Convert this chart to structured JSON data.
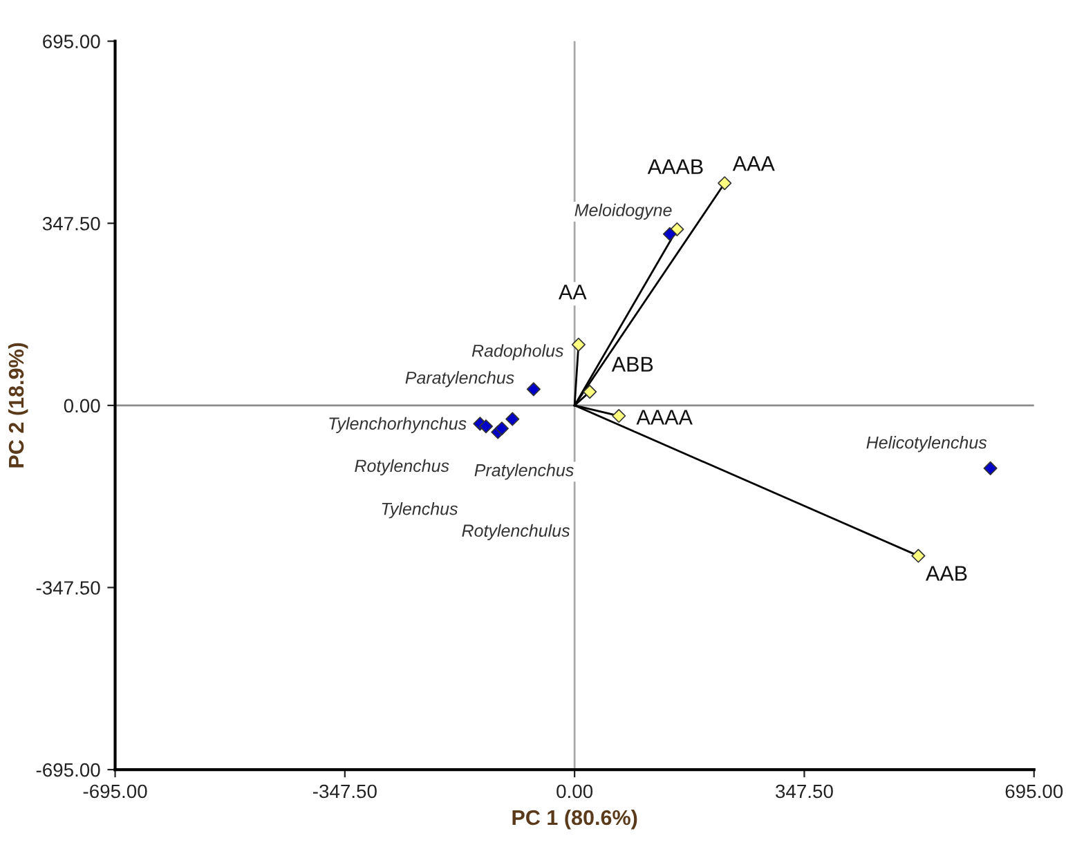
{
  "chart_data": {
    "type": "scatter",
    "xlabel": "PC 1 (80.6%)",
    "ylabel": "PC 2 (18.9%)",
    "xlim": [
      -695,
      695
    ],
    "ylim": [
      -695,
      695
    ],
    "xticks": [
      {
        "value": -695,
        "label": "-695.00"
      },
      {
        "value": -347.5,
        "label": "-347.50"
      },
      {
        "value": 0,
        "label": "0.00"
      },
      {
        "value": 347.5,
        "label": "347.50"
      },
      {
        "value": 695,
        "label": "695.00"
      }
    ],
    "yticks": [
      {
        "value": -695,
        "label": "-695.00"
      },
      {
        "value": -347.5,
        "label": "-347.50"
      },
      {
        "value": 0,
        "label": "0.00"
      },
      {
        "value": 347.5,
        "label": "347.50"
      },
      {
        "value": 695,
        "label": "695.00"
      }
    ],
    "grid": false,
    "marker": "diamond",
    "ref_lines": [
      {
        "axis": "x",
        "value": 0,
        "color": "#a8a8a8"
      },
      {
        "axis": "y",
        "value": 0,
        "color": "#8c8c8c"
      }
    ],
    "series": [
      {
        "type": "line",
        "marker": "none",
        "color": "#000000",
        "x": [
          0,
          155
        ],
        "values": [
          0,
          336
        ]
      },
      {
        "type": "line",
        "marker": "none",
        "color": "#000000",
        "x": [
          0,
          227
        ],
        "values": [
          0,
          424
        ]
      },
      {
        "type": "line",
        "marker": "none",
        "color": "#000000",
        "x": [
          0,
          6
        ],
        "values": [
          0,
          116
        ]
      },
      {
        "type": "line",
        "marker": "none",
        "color": "#000000",
        "x": [
          0,
          23
        ],
        "values": [
          0,
          26
        ]
      },
      {
        "type": "line",
        "marker": "none",
        "color": "#000000",
        "x": [
          0,
          67
        ],
        "values": [
          0,
          -20
        ]
      },
      {
        "type": "line",
        "marker": "none",
        "color": "#000000",
        "x": [
          0,
          520
        ],
        "values": [
          0,
          -287
        ]
      },
      {
        "color": "#ffff80",
        "x": [
          155,
          227,
          6,
          23,
          67,
          520
        ],
        "values": [
          336,
          424,
          116,
          26,
          -20,
          -287
        ]
      },
      {
        "color": "#0000c8",
        "x": [
          144,
          -62,
          -143,
          -134,
          -116,
          -110,
          -94,
          629
        ],
        "values": [
          327,
          31,
          -35,
          -40,
          -51,
          -44,
          -26,
          -120
        ]
      }
    ],
    "annotations": [
      {
        "text": "AAAB",
        "x": 153,
        "y": 452
      },
      {
        "text": "AAA",
        "x": 271,
        "y": 458
      },
      {
        "text": "AA",
        "x": -3,
        "y": 213
      },
      {
        "text": "ABB",
        "x": 88,
        "y": 75
      },
      {
        "text": "AAAA",
        "x": 136,
        "y": -26
      },
      {
        "text": "AAB",
        "x": 563,
        "y": -324
      },
      "Meloidogyne",
      "Radopholus",
      "Paratylenchus",
      "Tylenchorhynchus",
      "Rotylenchus",
      "Pratylenchus",
      "Tylenchus",
      "Rotylenchulus",
      "Helicotylenchus"
    ]
  }
}
